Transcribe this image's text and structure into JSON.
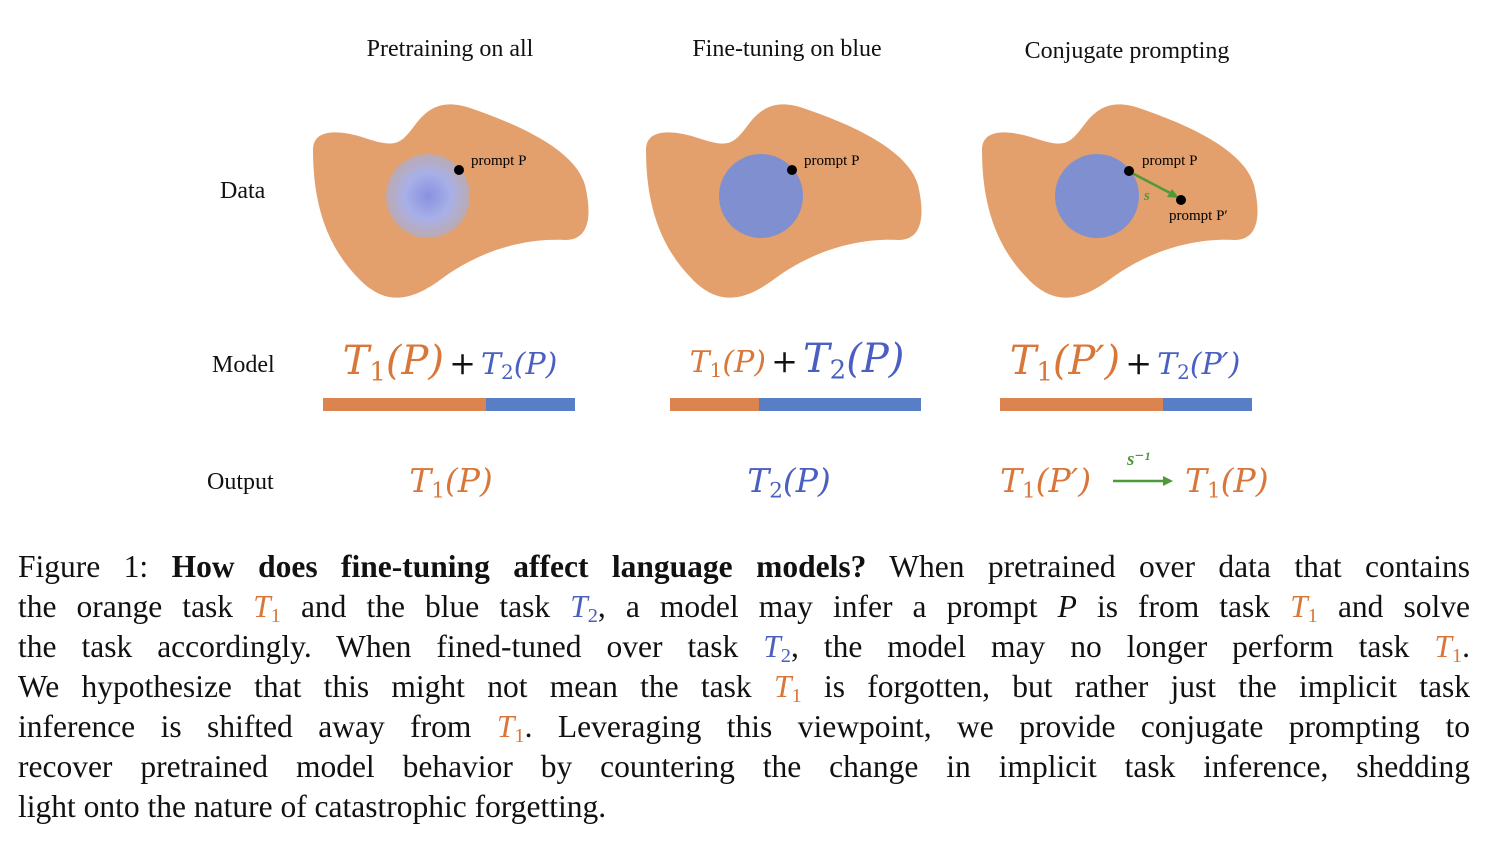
{
  "columns": [
    {
      "title": "Pretraining on all",
      "prompt_label": "prompt P"
    },
    {
      "title": "Fine-tuning on blue",
      "prompt_label": "prompt P"
    },
    {
      "title": "Conjugate prompting",
      "prompt_label": "prompt P",
      "prompt2_label": "prompt P′",
      "shift_label": "s"
    }
  ],
  "row_labels": {
    "data": "Data",
    "model": "Model",
    "output": "Output"
  },
  "model_formulas": [
    {
      "t1": "T",
      "t1_sub": "1",
      "t1_arg": "(P)",
      "plus": "+",
      "t2": "T",
      "t2_sub": "2",
      "t2_arg": "(P)",
      "dominant": "orange",
      "orange_share": 0.64
    },
    {
      "t1": "T",
      "t1_sub": "1",
      "t1_arg": "(P)",
      "plus": "+",
      "t2": "T",
      "t2_sub": "2",
      "t2_arg": "(P)",
      "dominant": "blue",
      "orange_share": 0.36
    },
    {
      "t1": "T",
      "t1_sub": "1",
      "t1_arg": "(P′)",
      "plus": "+",
      "t2": "T",
      "t2_sub": "2",
      "t2_arg": "(P′)",
      "dominant": "orange",
      "orange_share": 0.65
    }
  ],
  "outputs": [
    {
      "t": "T",
      "sub": "1",
      "arg": "(P)",
      "color": "orange"
    },
    {
      "t": "T",
      "sub": "2",
      "arg": "(P)",
      "color": "blue"
    },
    {
      "t": "T",
      "sub": "1",
      "arg": "(P′)",
      "arrow_label": "s⁻¹",
      "t_b": "T",
      "sub_b": "1",
      "arg_b": "(P)",
      "color": "orange"
    }
  ],
  "colors": {
    "orange_text": "#d9773a",
    "blue_text": "#4a5fc1",
    "blob": "#e3a06d",
    "circle": "#7f8fd0",
    "bar_orange": "#db8450",
    "bar_blue": "#587ec6",
    "arrow": "#4e9a3a"
  },
  "caption": {
    "lines": [
      [
        {
          "t": "Figure 1: "
        },
        {
          "b": "How does fine-tuning affect language models?"
        },
        {
          "t": " When pretrained over data that contains"
        }
      ],
      [
        {
          "t": "the orange task "
        },
        {
          "m": "T",
          "s": "1",
          "c": "o"
        },
        {
          "t": " and the blue task "
        },
        {
          "m": "T",
          "s": "2",
          "c": "b"
        },
        {
          "t": ", a model may infer a prompt "
        },
        {
          "m": "P"
        },
        {
          "t": " is from task "
        },
        {
          "m": "T",
          "s": "1",
          "c": "o"
        },
        {
          "t": " and solve"
        }
      ],
      [
        {
          "t": "the task accordingly.  When fined-tuned over task "
        },
        {
          "m": "T",
          "s": "2",
          "c": "b"
        },
        {
          "t": ", the model may no longer perform task "
        },
        {
          "m": "T",
          "s": "1",
          "c": "o"
        },
        {
          "t": "."
        }
      ],
      [
        {
          "t": "We hypothesize that this might not mean the task "
        },
        {
          "m": "T",
          "s": "1",
          "c": "o"
        },
        {
          "t": " is forgotten, but rather just the implicit task"
        }
      ],
      [
        {
          "t": "inference is shifted away from "
        },
        {
          "m": "T",
          "s": "1",
          "c": "o"
        },
        {
          "t": ".  Leveraging this viewpoint, we provide conjugate prompting to"
        }
      ],
      [
        {
          "t": "recover pretrained model behavior by countering the change in implicit task inference, shedding"
        }
      ],
      [
        {
          "t": "light onto the nature of catastrophic forgetting."
        }
      ]
    ]
  }
}
